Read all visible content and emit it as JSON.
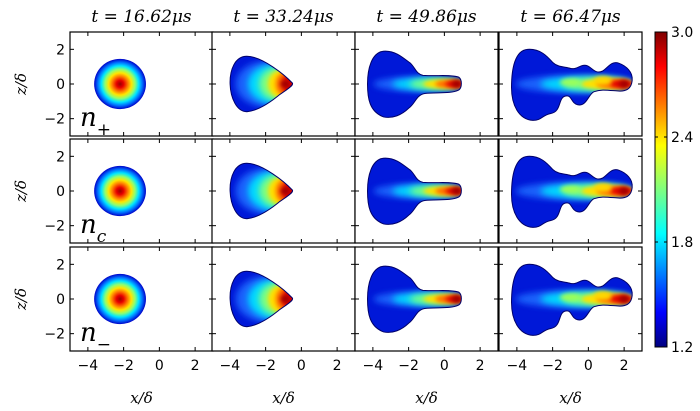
{
  "chart_data": {
    "type": "heatmap",
    "panel_titles": [
      "t = 16.62μs",
      "t = 33.24μs",
      "t = 49.86μs",
      "t = 66.47μs"
    ],
    "row_labels": [
      {
        "base": "n",
        "sub": "+"
      },
      {
        "base": "n",
        "sub": "c"
      },
      {
        "base": "n",
        "sub": "−"
      }
    ],
    "xlabel": "x/δ",
    "ylabel": "z/δ",
    "xlim": [
      -5,
      3
    ],
    "ylim": [
      -3,
      3
    ],
    "x_ticks": [
      -4,
      -2,
      0,
      2
    ],
    "y_ticks": [
      -2,
      0,
      2
    ],
    "x_tick_labels": [
      "−4",
      "−2",
      "0",
      "2"
    ],
    "y_tick_labels": [
      "−2",
      "0",
      "2"
    ],
    "colorbar": {
      "min": 1.2,
      "max": 3.0,
      "ticks": [
        1.2,
        1.8,
        2.4,
        3.0
      ],
      "tick_labels": [
        "1.2",
        "1.8",
        "2.4",
        "3.0"
      ],
      "colormap": "jet"
    },
    "stages": [
      {
        "time_us": 16.62,
        "front_x": -1.3,
        "peak_x": -2.1
      },
      {
        "time_us": 33.24,
        "front_x": -0.5,
        "peak_x": -0.9
      },
      {
        "time_us": 49.86,
        "front_x": 0.9,
        "peak_x": 0.7
      },
      {
        "time_us": 66.47,
        "front_x": 2.3,
        "peak_x": 2.0
      }
    ]
  }
}
